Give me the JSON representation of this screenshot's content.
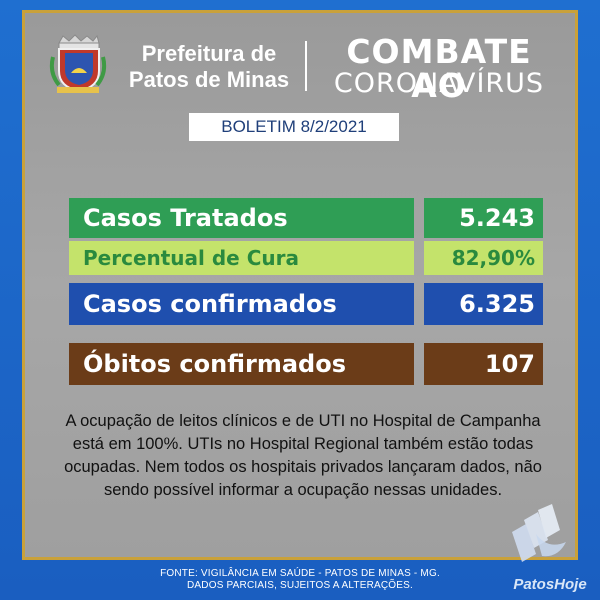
{
  "header": {
    "city_line1": "Prefeitura de",
    "city_line2": "Patos de Minas",
    "campaign_line1": "COMBATE AO",
    "campaign_line2": "CORONAVÍRUS",
    "bulletin": "BOLETIM 8/2/2021"
  },
  "stats": [
    {
      "label": "Casos Tratados",
      "value": "5.243",
      "label_bg": "#2f9e55",
      "value_bg": "#2f9e55",
      "label_color": "#ffffff",
      "value_color": "#ffffff"
    },
    {
      "label": "Percentual de Cura",
      "value": "82,90%",
      "label_bg": "#c4e36b",
      "value_bg": "#c4e36b",
      "label_color": "#2a8a3e",
      "value_color": "#2a8a3e"
    },
    {
      "label": "Casos confirmados",
      "value": "6.325",
      "label_bg": "#1f4fae",
      "value_bg": "#1f4fae",
      "label_color": "#ffffff",
      "value_color": "#ffffff"
    },
    {
      "label": "Óbitos confirmados",
      "value": "107",
      "label_bg": "#6b3c18",
      "value_bg": "#6b3c18",
      "label_color": "#ffffff",
      "value_color": "#ffffff"
    }
  ],
  "note": "A ocupação de leitos clínicos e de UTI no Hospital de Campanha está em 100%. UTIs no Hospital Regional também estão todas ocupadas. Nem todos os hospitais privados lançaram dados, não sendo possível informar a ocupação nessas unidades.",
  "footer": {
    "line1": "FONTE: VIGILÂNCIA EM SAÚDE - PATOS DE MINAS - MG.",
    "line2": "DADOS PARCIAIS, SUJEITOS A ALTERAÇÕES."
  },
  "brand": "PatosHoje",
  "icons": {
    "seal": "city-coat-of-arms-icon",
    "brand_logo": "patoshoje-logo-icon"
  },
  "colors": {
    "background": "#1f6fd0",
    "panel": "#a3a3a3",
    "border": "#c9a13a"
  }
}
